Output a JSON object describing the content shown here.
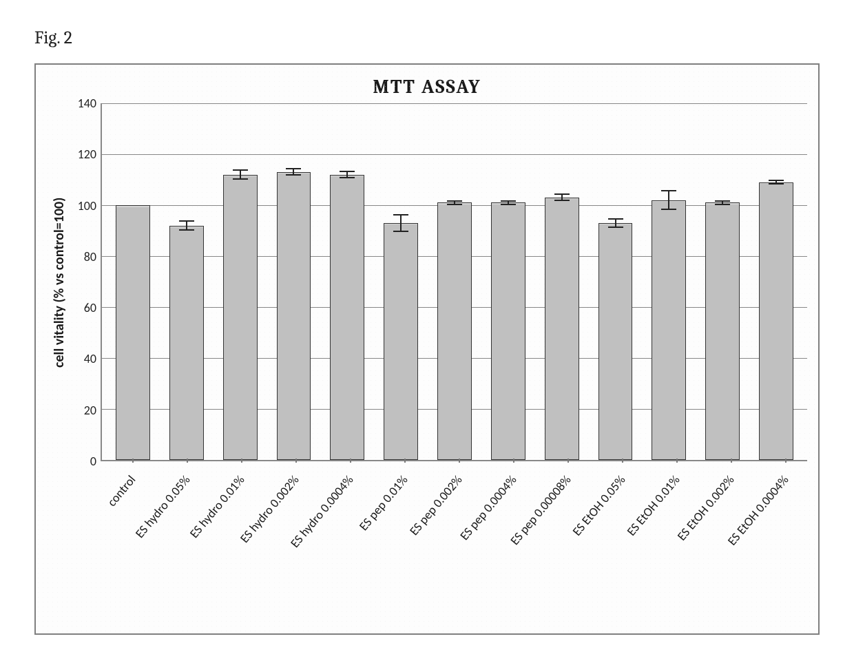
{
  "figure_label": "Fig. 2",
  "chart": {
    "type": "bar",
    "title": "MTT  ASSAY",
    "title_fontsize": 28,
    "title_fontfamily": "Cambria",
    "ylabel": "cell vitality (% vs control=100)",
    "ylabel_fontsize": 20,
    "ylabel_fontweight": "bold",
    "ylim": [
      0,
      140
    ],
    "ytick_step": 20,
    "yticks": [
      0,
      20,
      40,
      60,
      80,
      100,
      120,
      140
    ],
    "grid_color": "#878787",
    "axis_color": "#888888",
    "background_color": "#fdfdfd",
    "bar_color": "#c0c0c0",
    "bar_border_color": "#333333",
    "error_bar_color": "#222222",
    "bar_width": 0.64,
    "label_fontfamily": "Calibri",
    "categories": [
      "control",
      "ES hydro 0.05%",
      "ES hydro 0.01%",
      "ES hydro 0.002%",
      "ES hydro 0.0004%",
      "ES pep 0.01%",
      "ES pep 0.002%",
      "ES pep 0.0004%",
      "ES pep 0.00008%",
      "ES EtOH 0.05%",
      "ES EtOH 0.01%",
      "ES EtOH 0.002%",
      "ES EtOH 0.0004%"
    ],
    "values": [
      100,
      92,
      112,
      113,
      112,
      93,
      101,
      101,
      103,
      93,
      102,
      101,
      109
    ],
    "errors": [
      0,
      2,
      2,
      1.5,
      1.5,
      3.5,
      1,
      1,
      1.5,
      2,
      4,
      1,
      1
    ],
    "xlabel_rotation_deg": -50,
    "xlabel_fontsize": 18
  },
  "colors": {
    "frame_border": "#7f7f7f",
    "text": "#1a1a1a"
  }
}
